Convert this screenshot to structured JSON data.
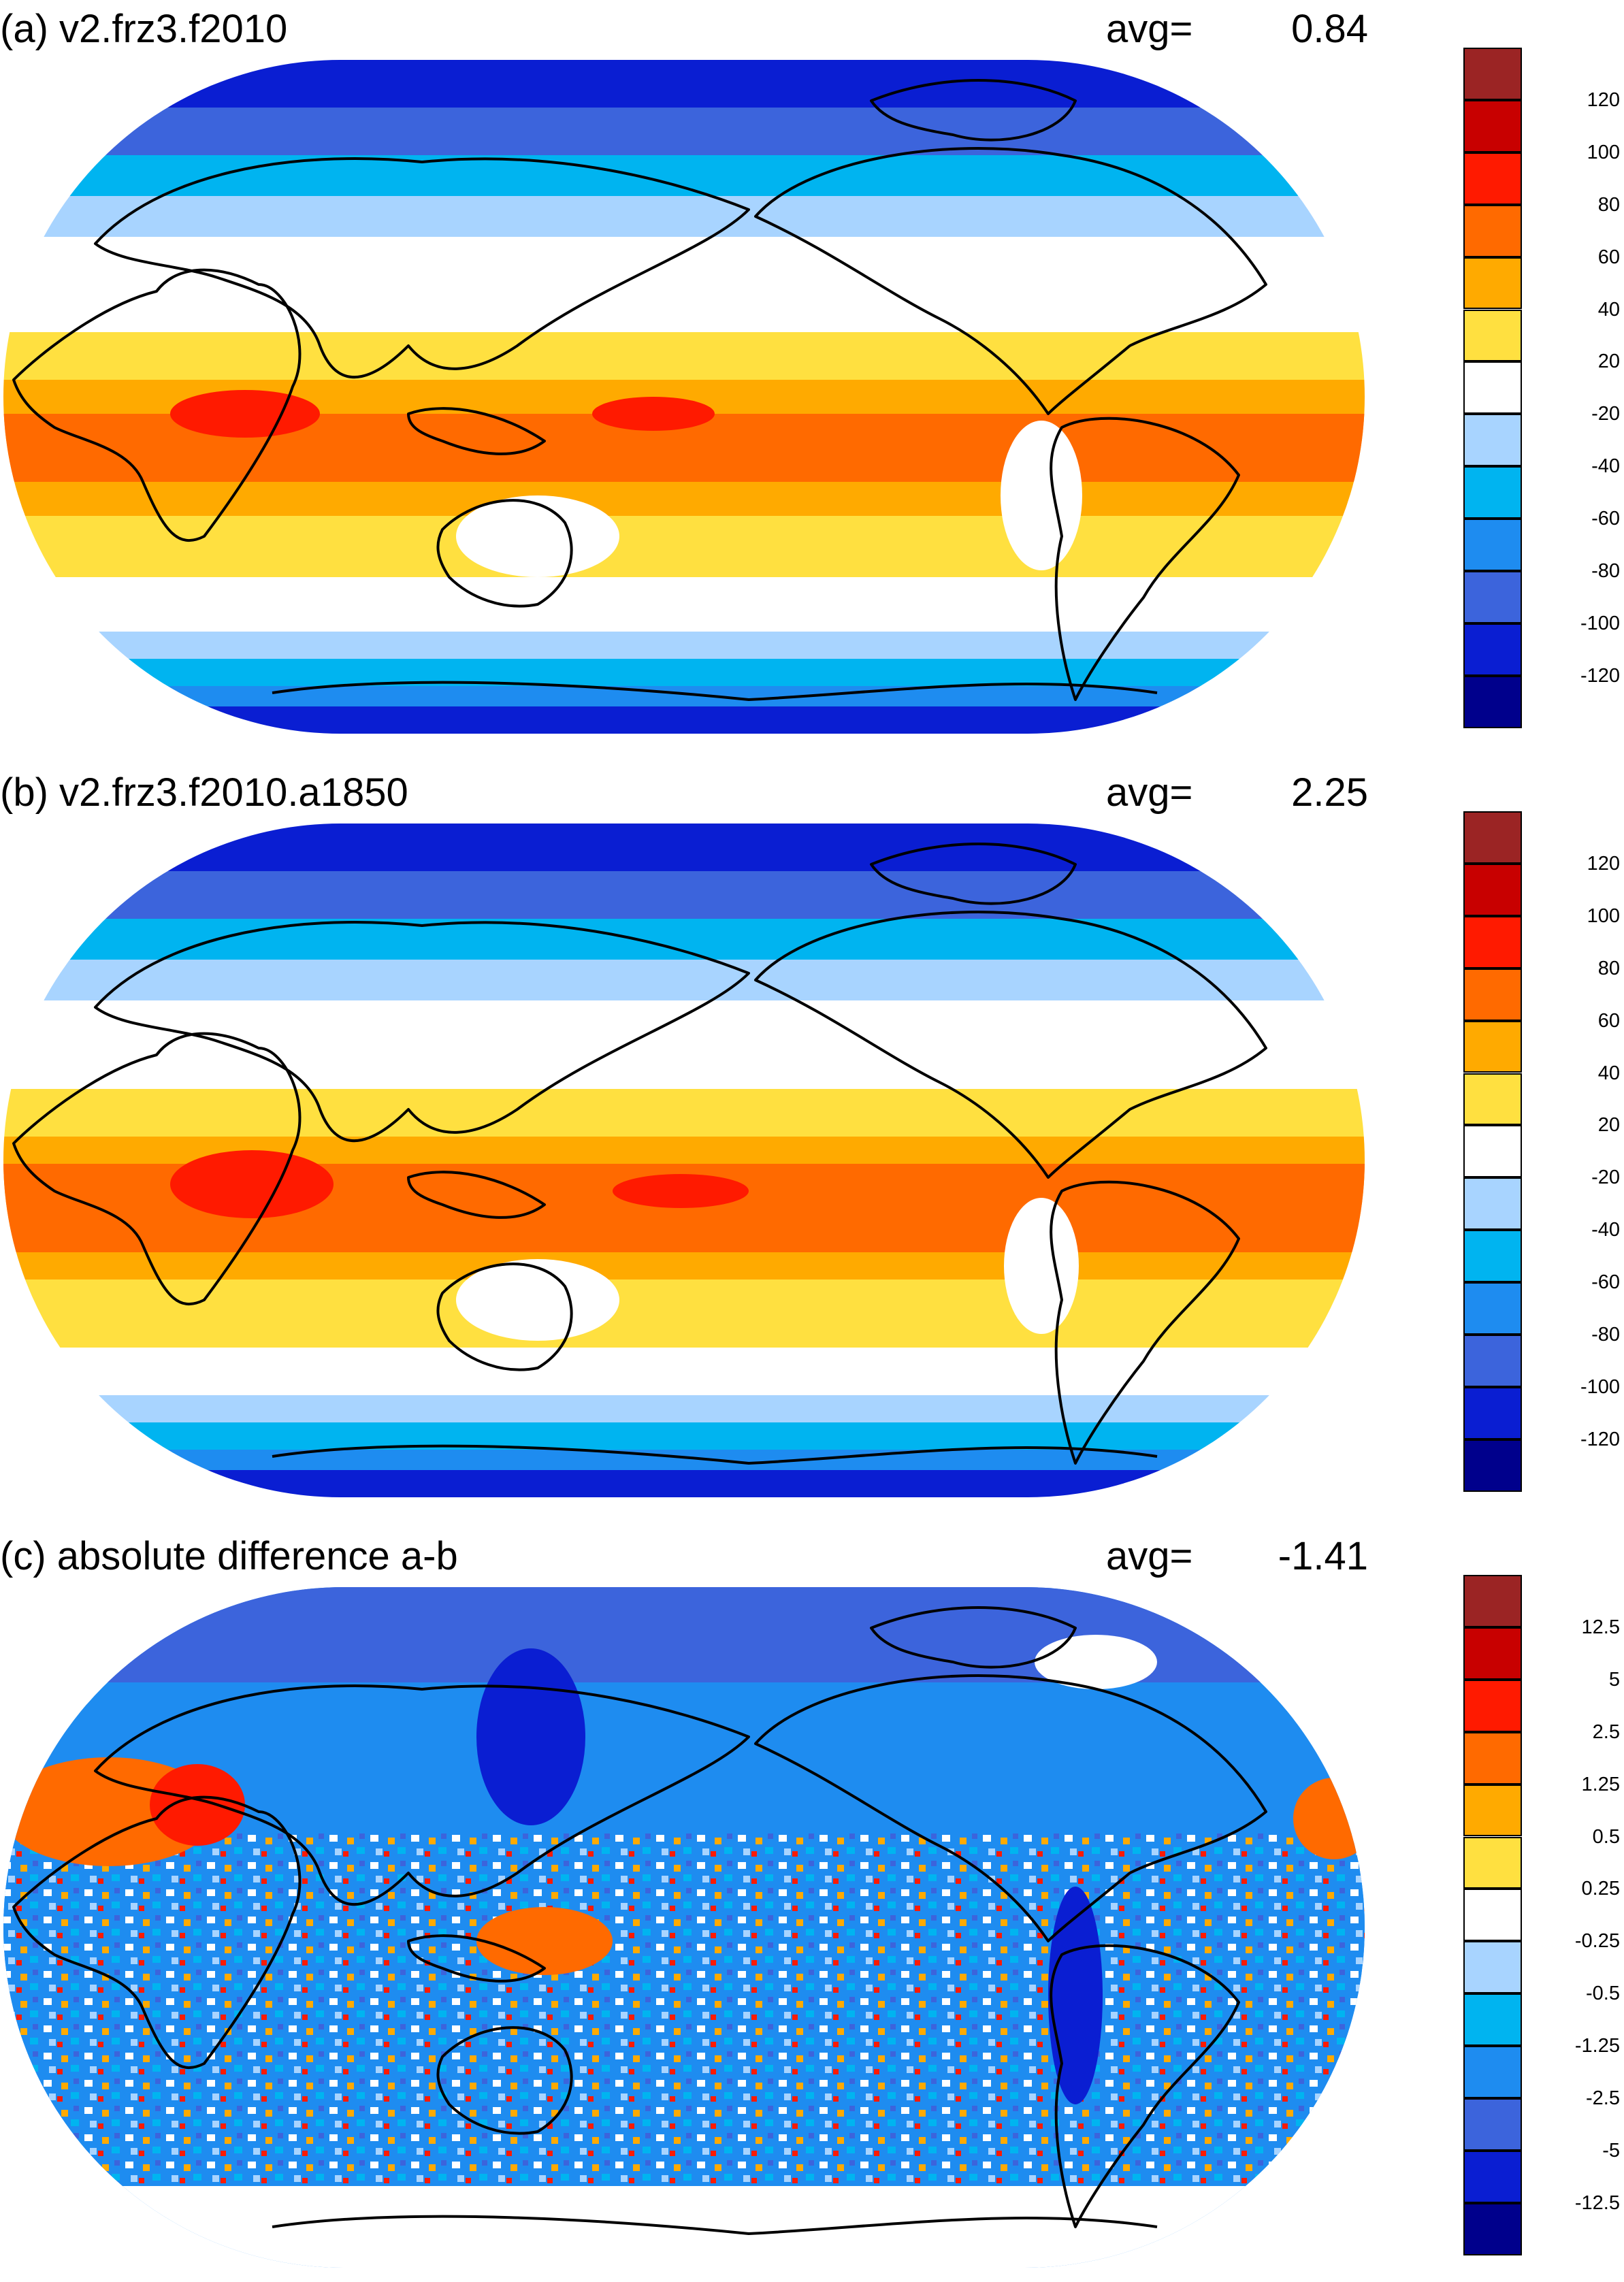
{
  "panels": [
    {
      "id": "a",
      "title": "(a) v2.frz3.f2010",
      "avg_label": "avg=",
      "avg_value": "0.84",
      "colorbar": {
        "labels": [
          "120",
          "100",
          "80",
          "60",
          "40",
          "20",
          "-20",
          "-40",
          "-60",
          "-80",
          "-100",
          "-120"
        ],
        "colors": [
          "#9b2424",
          "#c80000",
          "#ff1a00",
          "#ff6a00",
          "#ffaa00",
          "#ffe040",
          "#ffffff",
          "#a8d4ff",
          "#00b4f0",
          "#1e8cf0",
          "#3c64dc",
          "#0a1ed2",
          "#00008c"
        ]
      }
    },
    {
      "id": "b",
      "title": "(b) v2.frz3.f2010.a1850",
      "avg_label": "avg=",
      "avg_value": "2.25",
      "colorbar": {
        "labels": [
          "120",
          "100",
          "80",
          "60",
          "40",
          "20",
          "-20",
          "-40",
          "-60",
          "-80",
          "-100",
          "-120"
        ],
        "colors": [
          "#9b2424",
          "#c80000",
          "#ff1a00",
          "#ff6a00",
          "#ffaa00",
          "#ffe040",
          "#ffffff",
          "#a8d4ff",
          "#00b4f0",
          "#1e8cf0",
          "#3c64dc",
          "#0a1ed2",
          "#00008c"
        ]
      }
    },
    {
      "id": "c",
      "title": "(c) absolute difference a-b",
      "avg_label": "avg=",
      "avg_value": "-1.41",
      "colorbar": {
        "labels": [
          "12.5",
          "5",
          "2.5",
          "1.25",
          "0.5",
          "0.25",
          "-0.25",
          "-0.5",
          "-1.25",
          "-2.5",
          "-5",
          "-12.5"
        ],
        "colors": [
          "#9b2424",
          "#c80000",
          "#ff1a00",
          "#ff6a00",
          "#ffaa00",
          "#ffe040",
          "#ffffff",
          "#a8d4ff",
          "#00b4f0",
          "#1e8cf0",
          "#3c64dc",
          "#0a1ed2",
          "#00008c"
        ]
      }
    }
  ]
}
